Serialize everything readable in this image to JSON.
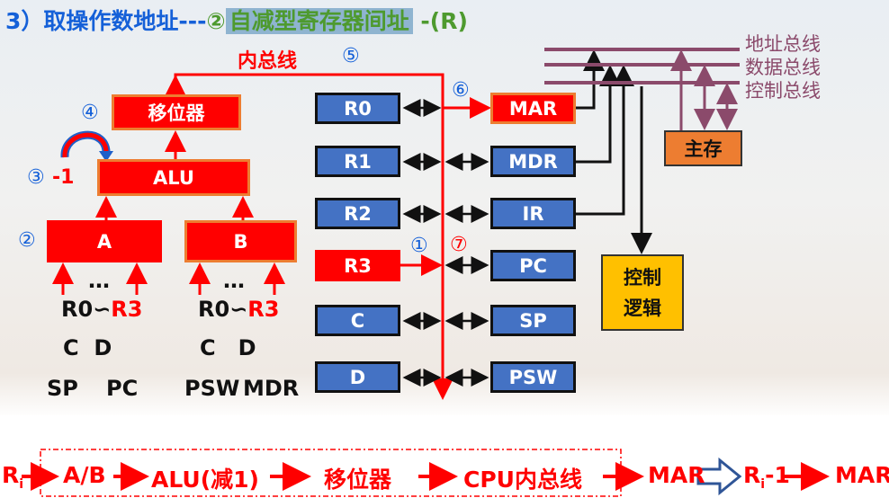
{
  "title": {
    "prefix": "3）取操作数地址---",
    "circled": "②",
    "mode": "自减型寄存器间址",
    "suffix": " -(R)",
    "highlight_color": "#8fb4d0",
    "prefix_color": "#1560d8",
    "mode_color": "#4e9a2f"
  },
  "bus": {
    "internal_label": "内总线",
    "address": "地址总线",
    "data": "数据总线",
    "control": "控制总线"
  },
  "steps": {
    "s1": "①",
    "s2": "②",
    "s3": "③",
    "s3_text": "-1",
    "s4": "④",
    "s5": "⑤",
    "s6": "⑥",
    "s7": "⑦"
  },
  "units": {
    "shifter": "移位器",
    "alu": "ALU",
    "a": "A",
    "b": "B",
    "memory": "主存",
    "control_logic": "控制\n逻辑"
  },
  "left_regs": [
    "R0",
    "R1",
    "R2",
    "R3",
    "C",
    "D"
  ],
  "right_regs": [
    "MAR",
    "MDR",
    "IR",
    "PC",
    "SP",
    "PSW"
  ],
  "a_inputs": {
    "dots": "…",
    "r0": "R0",
    "tilde": "∽",
    "r3": "R3",
    "row2": "C  D",
    "sp": "SP",
    "pc": "PC"
  },
  "b_inputs": {
    "dots": "…",
    "r0": "R0",
    "tilde": "∽",
    "r3": "R3",
    "row2": "C   D",
    "psw": "PSW",
    "mdr": "MDR"
  },
  "formula": {
    "ri": "R",
    "sub": "i",
    "ab": "A/B",
    "alu": "ALU(减1)",
    "shifter": "移位器",
    "bus": "CPU内总线",
    "mar": "MAR",
    "ri2": "R",
    "sub2": "i",
    "minus1": "-1",
    "mar2": "MAR"
  },
  "colors": {
    "red": "#ff0000",
    "register": "#4472c4",
    "memory": "#ed7d31",
    "control": "#ffc000",
    "bus": "#8b4a6b"
  }
}
